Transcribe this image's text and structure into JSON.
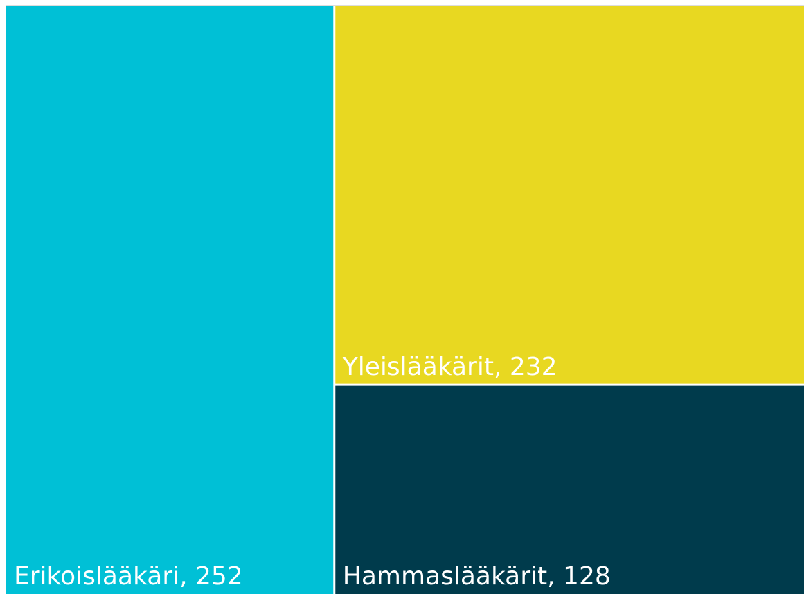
{
  "chart_data": {
    "type": "treemap",
    "categories": [
      "Erikoislääkäri",
      "Yleislääkärit",
      "Hammaslääkärit"
    ],
    "values": [
      252,
      232,
      128
    ],
    "value_labels": [
      "Erikoislääkäri, 252",
      "Yleislääkärit, 232",
      "Hammaslääkärit, 128"
    ],
    "colors": [
      "#00c0d6",
      "#e8d821",
      "#003b4c"
    ]
  }
}
